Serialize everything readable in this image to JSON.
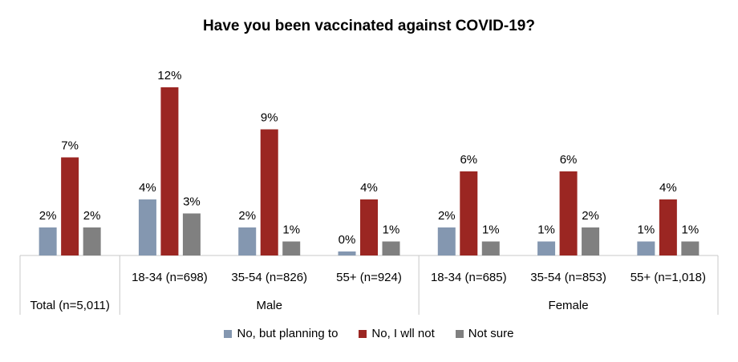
{
  "chart_data": {
    "type": "bar",
    "title": "Have you been vaccinated against COVID-19?",
    "categories": [
      "Total (n=5,011)",
      "18-34 (n=698)",
      "35-54 (n=826)",
      "55+ (n=924)",
      "18-34 (n=685)",
      "35-54 (n=853)",
      "55+ (n=1,018)"
    ],
    "groups": [
      {
        "label": "",
        "categories": [
          0
        ]
      },
      {
        "label": "Male",
        "categories": [
          1,
          2,
          3
        ]
      },
      {
        "label": "Female",
        "categories": [
          4,
          5,
          6
        ]
      }
    ],
    "series": [
      {
        "name": "No, but planning to",
        "color": "#8497b0",
        "values": [
          2,
          4,
          2,
          0,
          2,
          1,
          1
        ],
        "labels": [
          "2%",
          "4%",
          "2%",
          "0%",
          "2%",
          "1%",
          "1%"
        ]
      },
      {
        "name": "No, I wll not",
        "color": "#9b2622",
        "values": [
          7,
          12,
          9,
          4,
          6,
          6,
          4
        ],
        "labels": [
          "7%",
          "12%",
          "9%",
          "4%",
          "6%",
          "6%",
          "4%"
        ]
      },
      {
        "name": "Not sure",
        "color": "#808080",
        "values": [
          2,
          3,
          1,
          1,
          1,
          2,
          1
        ],
        "labels": [
          "2%",
          "3%",
          "1%",
          "1%",
          "1%",
          "2%",
          "1%"
        ]
      }
    ],
    "legend_position": "bottom",
    "grid": false
  }
}
